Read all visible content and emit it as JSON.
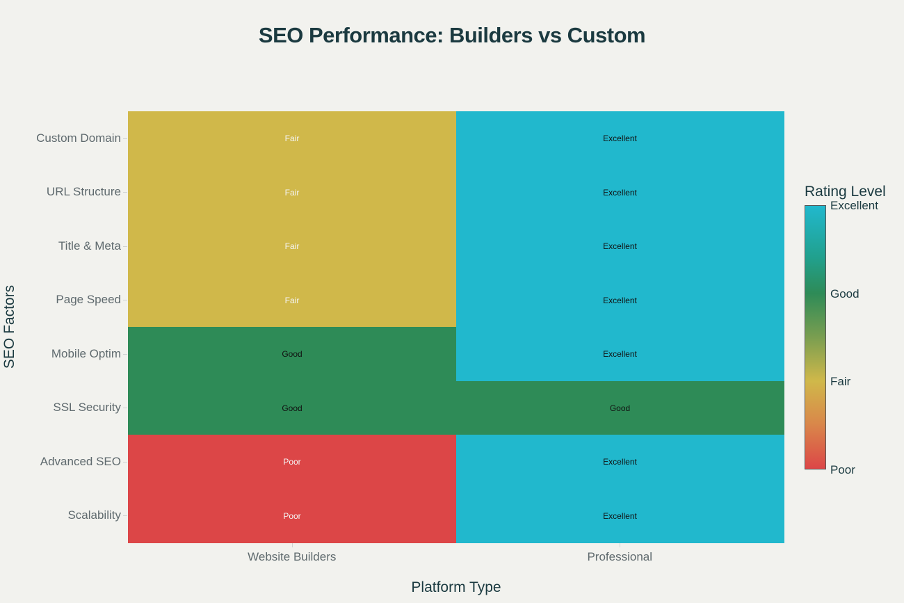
{
  "title": "SEO Performance: Builders vs Custom",
  "axes": {
    "x_label": "Platform Type",
    "y_label": "SEO Factors"
  },
  "colorbar": {
    "title": "Rating Level",
    "ticks": [
      "Excellent",
      "Good",
      "Fair",
      "Poor"
    ]
  },
  "chart_data": {
    "type": "heatmap",
    "title": "SEO Performance: Builders vs Custom",
    "xlabel": "Platform Type",
    "ylabel": "SEO Factors",
    "x": [
      "Website Builders",
      "Professional"
    ],
    "y": [
      "Custom Domain",
      "URL Structure",
      "Title & Meta",
      "Page Speed",
      "Mobile Optim",
      "SSL Security",
      "Advanced SEO",
      "Scalability"
    ],
    "scale": {
      "Poor": 1,
      "Fair": 2,
      "Good": 3,
      "Excellent": 4
    },
    "z": [
      [
        2,
        4
      ],
      [
        2,
        4
      ],
      [
        2,
        4
      ],
      [
        2,
        4
      ],
      [
        3,
        4
      ],
      [
        3,
        3
      ],
      [
        1,
        4
      ],
      [
        1,
        4
      ]
    ],
    "text": [
      [
        "Fair",
        "Excellent"
      ],
      [
        "Fair",
        "Excellent"
      ],
      [
        "Fair",
        "Excellent"
      ],
      [
        "Fair",
        "Excellent"
      ],
      [
        "Good",
        "Excellent"
      ],
      [
        "Good",
        "Good"
      ],
      [
        "Poor",
        "Excellent"
      ],
      [
        "Poor",
        "Excellent"
      ]
    ],
    "colorscale": {
      "Poor": "#dc4647",
      "Fair": "#d0b84a",
      "Good": "#2e8b57",
      "Excellent": "#21b8cd"
    },
    "label_colors": {
      "Poor": "#f5f5f5",
      "Fair": "#f5f5f5",
      "Good": "#111111",
      "Excellent": "#111111"
    },
    "colorbar_title": "Rating Level",
    "colorbar_ticks": [
      "Poor",
      "Fair",
      "Good",
      "Excellent"
    ],
    "legend_position": "right"
  }
}
